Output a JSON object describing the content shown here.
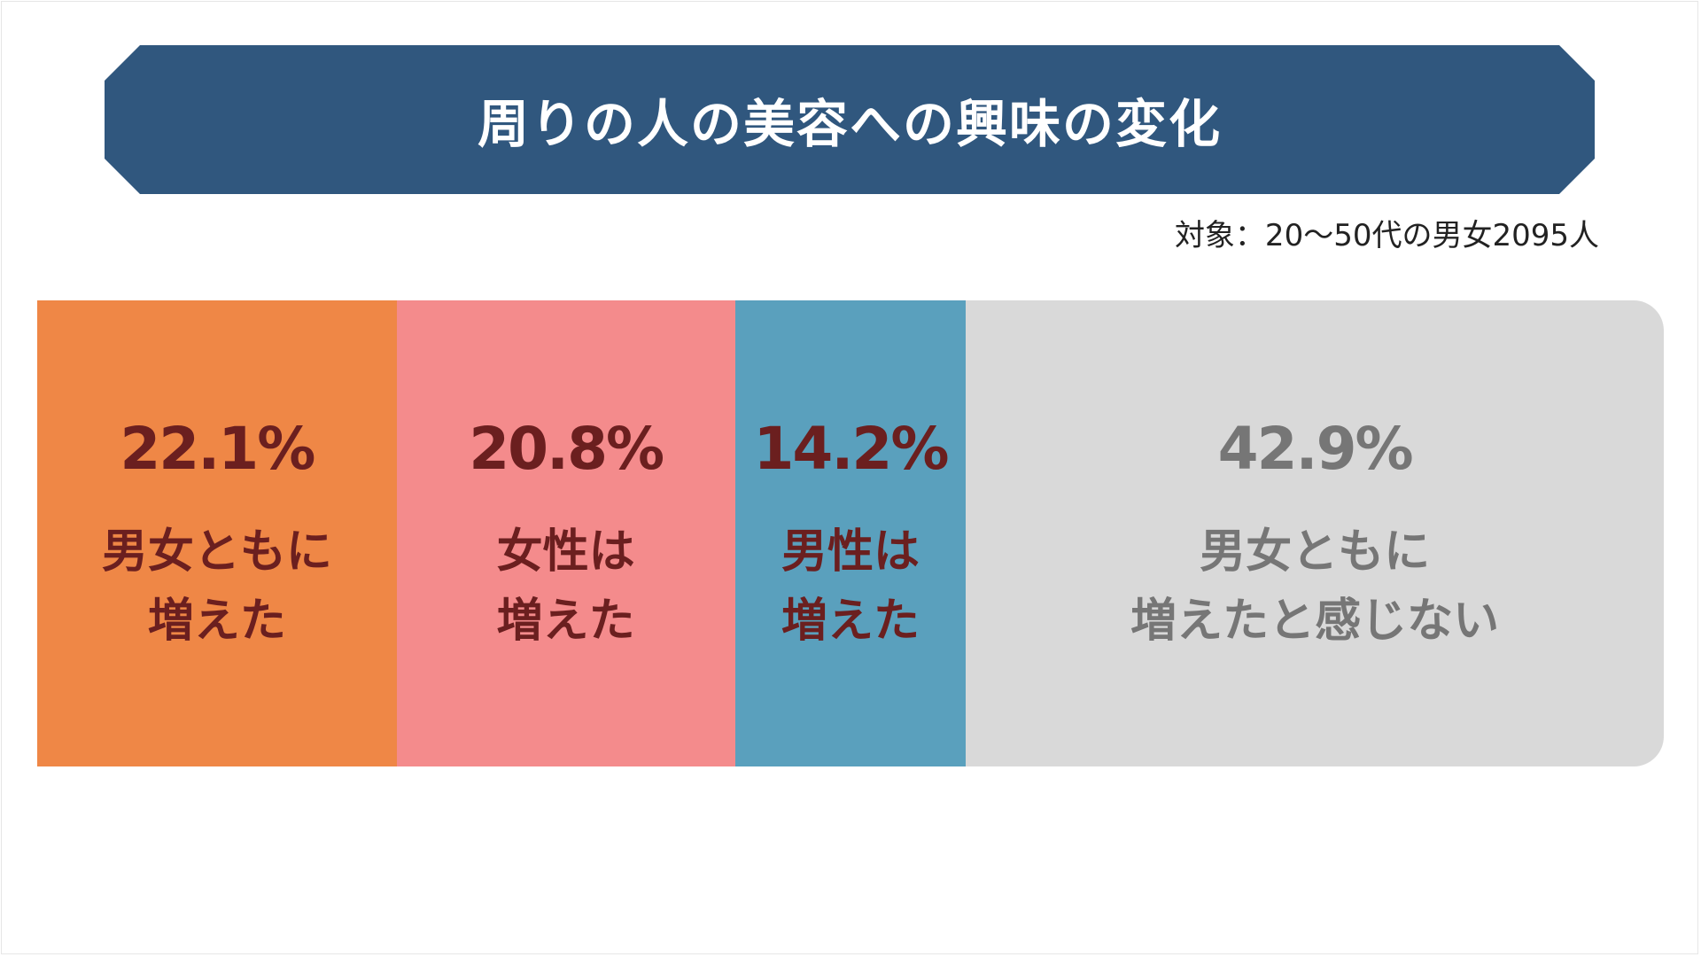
{
  "title": "周りの人の美容への興味の変化",
  "subtitle": "対象：20〜50代の男女2095人",
  "chart_data": {
    "type": "bar",
    "orientation": "horizontal-stacked",
    "categories": [
      "男女ともに増えた",
      "女性は増えた",
      "男性は増えた",
      "男女ともに増えたと感じない"
    ],
    "values": [
      22.1,
      20.8,
      14.2,
      42.9
    ],
    "value_labels": [
      "22.1%",
      "20.8%",
      "14.2%",
      "42.9%"
    ],
    "segment_labels": [
      "男女ともに\n増えた",
      "女性は\n増えた",
      "男性は\n増えた",
      "男女ともに\n増えたと感じない"
    ],
    "colors": [
      "#ef8746",
      "#f48b8c",
      "#5aa0bd",
      "#d9d9d9"
    ],
    "text_colors": [
      "#6b1f1f",
      "#6b1f1f",
      "#6b1f1f",
      "#767676"
    ],
    "title": "周りの人の美容への興味の変化",
    "subtitle": "対象：20〜50代の男女2095人",
    "total": 100
  }
}
